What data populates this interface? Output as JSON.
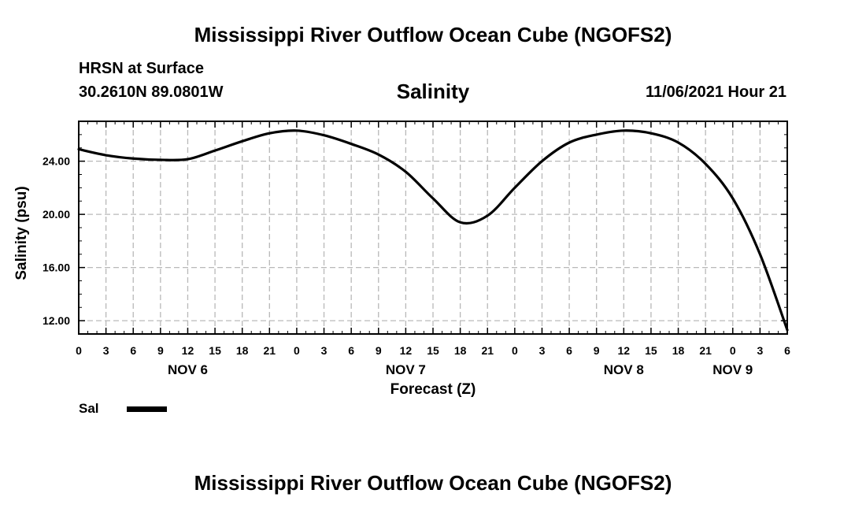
{
  "header": {
    "title": "Mississippi River Outflow Ocean Cube (NGOFS2)",
    "station": "HRSN at Surface",
    "coordinates": "30.2610N  89.0801W",
    "variable": "Salinity",
    "datetime": "11/06/2021 Hour 21"
  },
  "footer": {
    "title": "Mississippi River Outflow Ocean Cube (NGOFS2)"
  },
  "legend": {
    "label": "Sal",
    "color": "#000000"
  },
  "chart_data": {
    "type": "line",
    "title": "Salinity",
    "xlabel": "Forecast (Z)",
    "ylabel": "Salinity (psu)",
    "x_unit": "hours since NOV 6 00Z",
    "xlim": [
      0,
      78
    ],
    "ylim": [
      11,
      27
    ],
    "grid": true,
    "x_ticks": [
      0,
      3,
      6,
      9,
      12,
      15,
      18,
      21,
      24,
      27,
      30,
      33,
      36,
      39,
      42,
      45,
      48,
      51,
      54,
      57,
      60,
      63,
      66,
      69,
      72,
      75,
      78
    ],
    "x_tick_labels": [
      "0",
      "3",
      "6",
      "9",
      "12",
      "15",
      "18",
      "21",
      "0",
      "3",
      "6",
      "9",
      "12",
      "15",
      "18",
      "21",
      "0",
      "3",
      "6",
      "9",
      "12",
      "15",
      "18",
      "21",
      "0",
      "3",
      "6"
    ],
    "date_labels": [
      {
        "x": 12,
        "label": "NOV 6"
      },
      {
        "x": 36,
        "label": "NOV 7"
      },
      {
        "x": 60,
        "label": "NOV 8"
      },
      {
        "x": 72,
        "label": "NOV 9"
      }
    ],
    "y_ticks": [
      12,
      16,
      20,
      24
    ],
    "y_tick_labels": [
      "12.00",
      "16.00",
      "20.00",
      "24.00"
    ],
    "series": [
      {
        "name": "Sal",
        "color": "#000000",
        "x": [
          0,
          3,
          6,
          9,
          12,
          15,
          18,
          21,
          24,
          27,
          30,
          33,
          36,
          39,
          42,
          45,
          48,
          51,
          54,
          57,
          60,
          63,
          66,
          69,
          72,
          75,
          78
        ],
        "y": [
          24.9,
          24.45,
          24.2,
          24.1,
          24.15,
          24.8,
          25.5,
          26.1,
          26.3,
          25.95,
          25.3,
          24.5,
          23.2,
          21.2,
          19.4,
          19.9,
          22.0,
          24.0,
          25.4,
          26.0,
          26.3,
          26.1,
          25.4,
          23.8,
          21.2,
          17.0,
          11.3
        ]
      }
    ]
  }
}
